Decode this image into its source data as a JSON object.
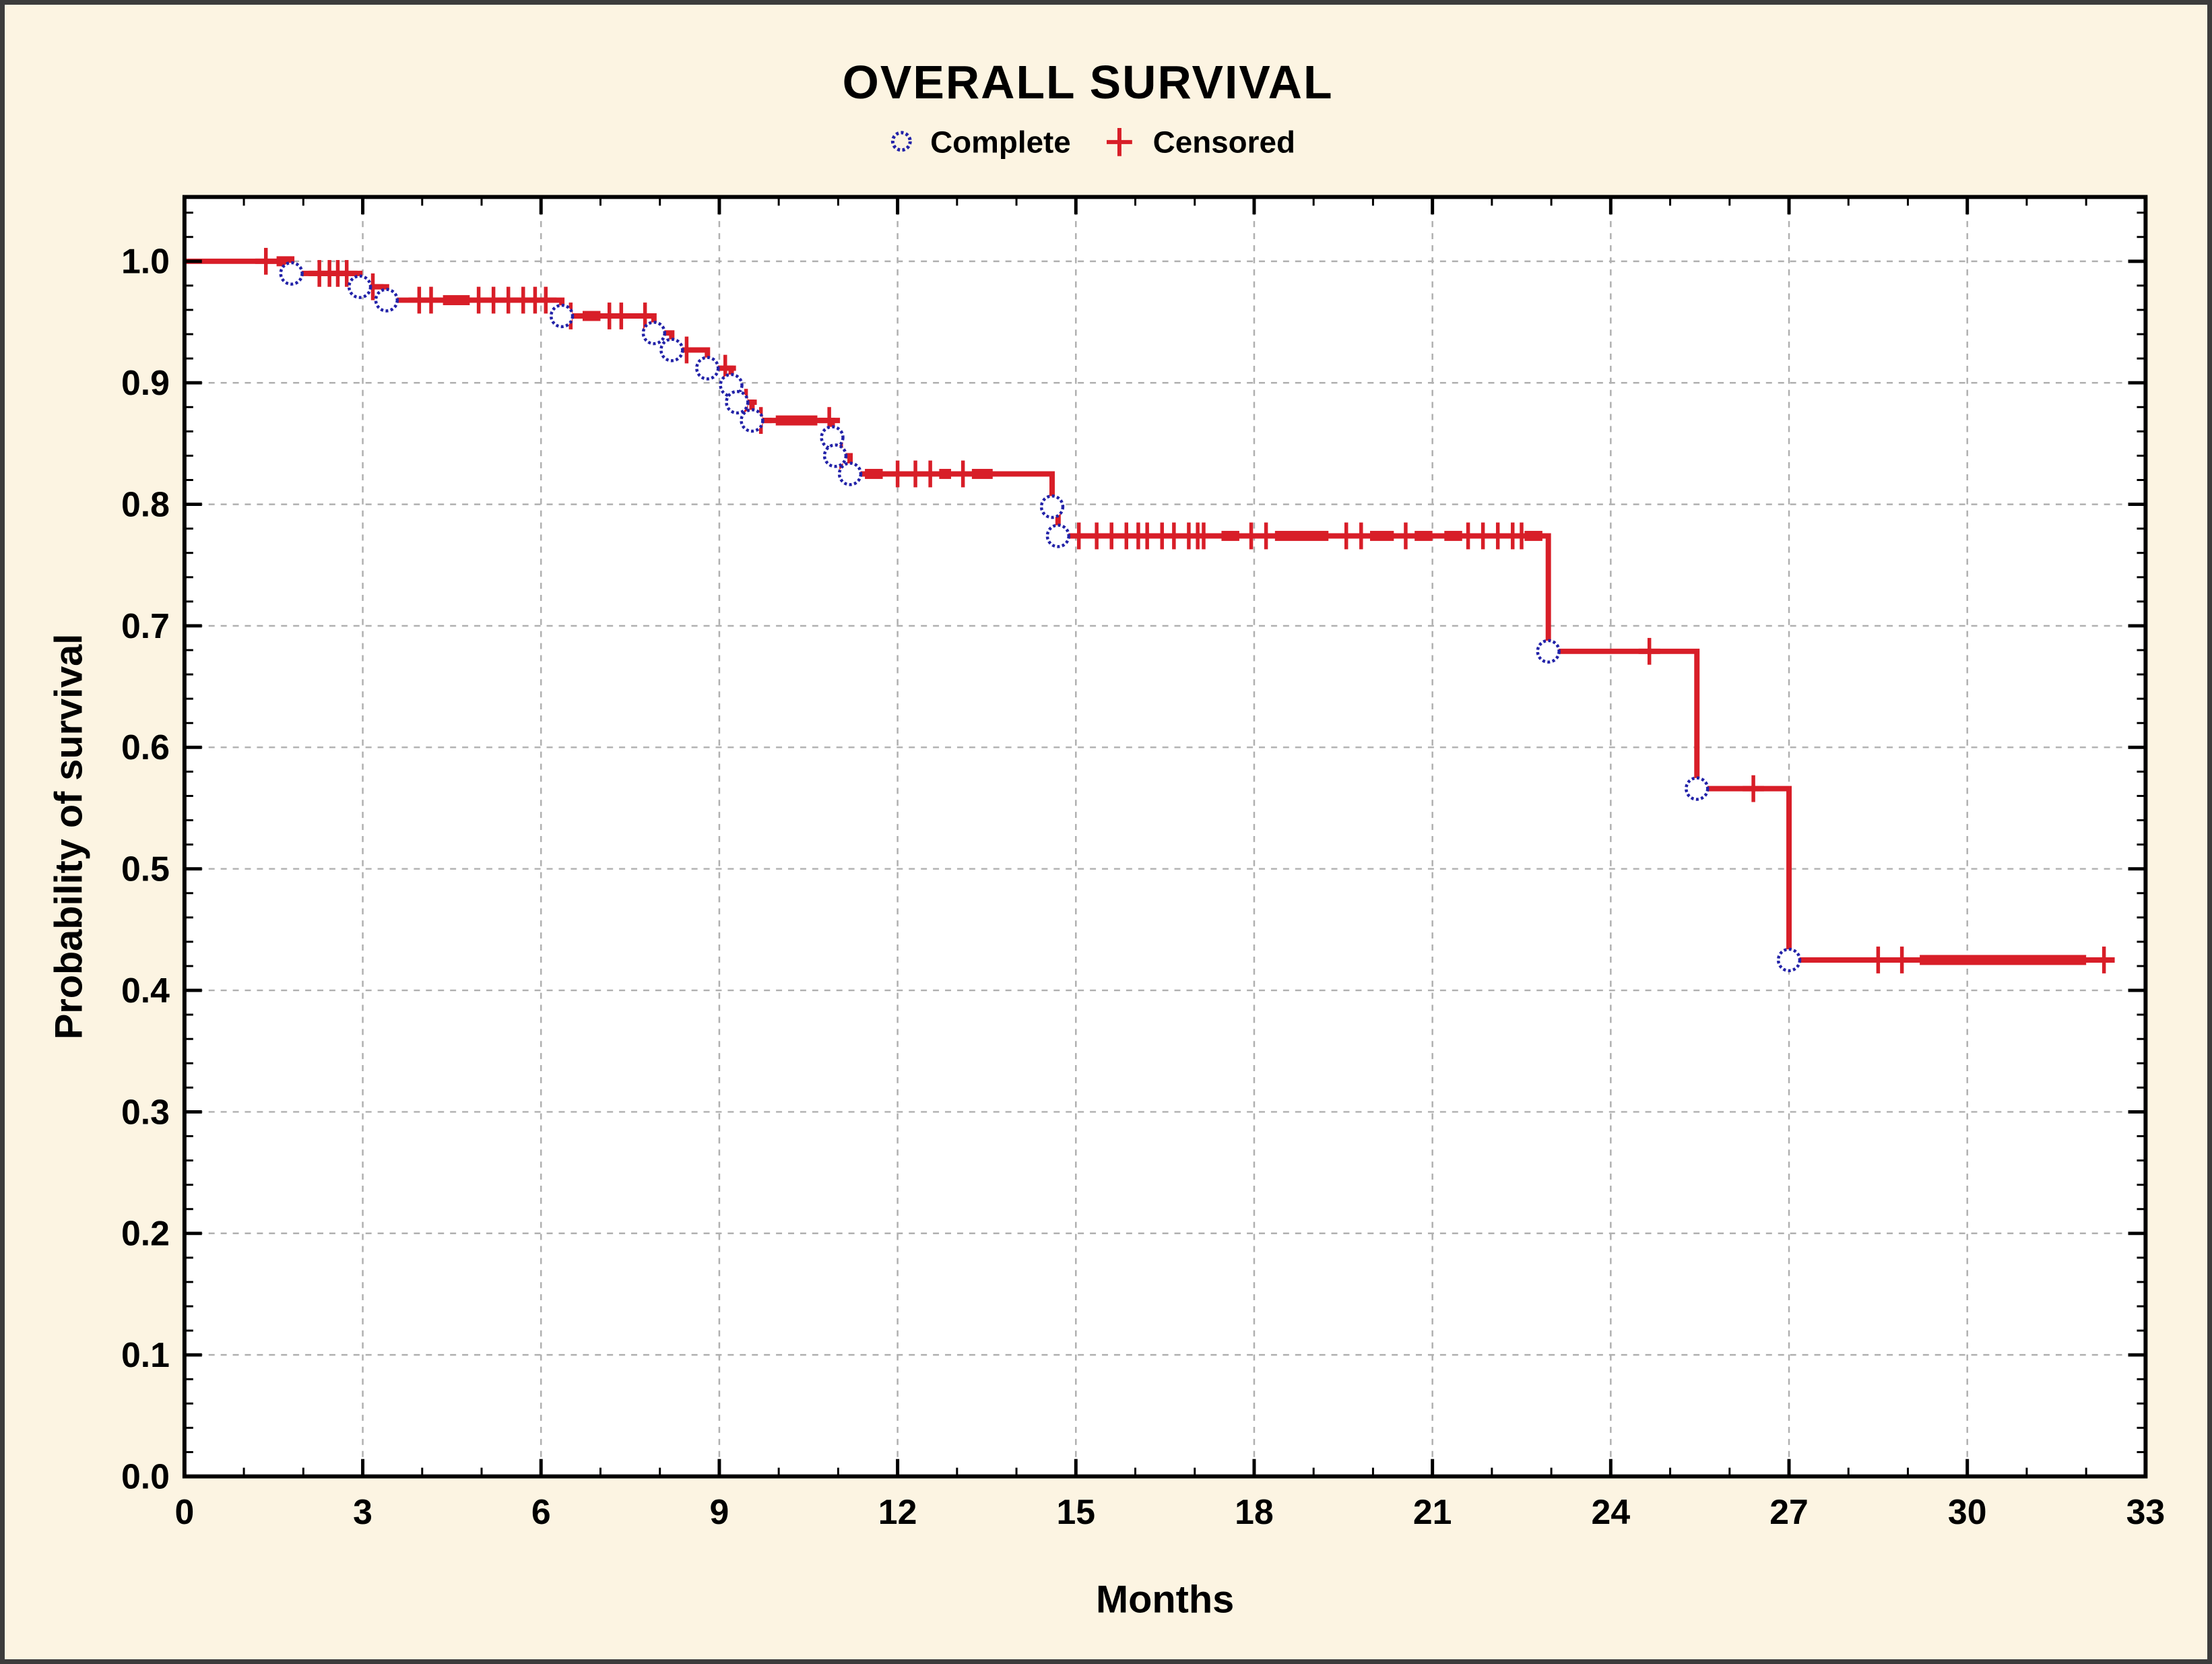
{
  "page": {
    "background_color": "#fcf4e2",
    "border_color": "#3c3c3c"
  },
  "chart_data": {
    "type": "line",
    "subtype": "kaplan-meier-step",
    "title": "OVERALL SURVIVAL",
    "legend": [
      {
        "label": "Complete",
        "marker": "circle-icon",
        "color": "#2222a8"
      },
      {
        "label": "Censored",
        "marker": "plus-icon",
        "color": "#d81e28"
      }
    ],
    "xlabel": "Months",
    "ylabel": "Probability of survival",
    "xlim": [
      0,
      33
    ],
    "ylim": [
      0.0,
      1.053
    ],
    "x_ticks": [
      0,
      3,
      6,
      9,
      12,
      15,
      18,
      21,
      24,
      27,
      30,
      33
    ],
    "x_tick_labels": [
      "0",
      "3",
      "6",
      "9",
      "12",
      "15",
      "18",
      "21",
      "24",
      "27",
      "30",
      "33"
    ],
    "x_minor_step": 1,
    "y_ticks": [
      0.0,
      0.1,
      0.2,
      0.3,
      0.4,
      0.5,
      0.6,
      0.7,
      0.8,
      0.9,
      1.0
    ],
    "y_tick_labels": [
      "0.0",
      "0.1",
      "0.2",
      "0.3",
      "0.4",
      "0.5",
      "0.6",
      "0.7",
      "0.8",
      "0.9",
      "1.0"
    ],
    "y_minor_step": 0.02,
    "grid": {
      "shown": true,
      "style": "dashed"
    },
    "colors": {
      "line": "#d81e28",
      "complete_marker": "#2222a8",
      "grid": "#b0b0b0",
      "axis": "#000000",
      "plot_bg": "#ffffff",
      "text": "#000000"
    },
    "curve_start": [
      0,
      1.0
    ],
    "curve_end_month": 32.4,
    "deaths": [
      [
        1.8,
        0.99
      ],
      [
        2.95,
        0.979
      ],
      [
        3.4,
        0.968
      ],
      [
        6.35,
        0.955
      ],
      [
        7.9,
        0.941
      ],
      [
        8.2,
        0.927
      ],
      [
        8.8,
        0.912
      ],
      [
        9.2,
        0.898
      ],
      [
        9.3,
        0.884
      ],
      [
        9.55,
        0.869
      ],
      [
        10.9,
        0.855
      ],
      [
        10.95,
        0.84
      ],
      [
        11.2,
        0.825
      ],
      [
        14.6,
        0.798
      ],
      [
        14.7,
        0.774
      ],
      [
        22.95,
        0.679
      ],
      [
        25.45,
        0.566
      ],
      [
        27.0,
        0.425
      ]
    ],
    "censored": [
      [
        1.37,
        1.0
      ],
      [
        2.27,
        0.99
      ],
      [
        2.44,
        0.99
      ],
      [
        2.58,
        0.99
      ],
      [
        2.73,
        0.99
      ],
      [
        3.17,
        0.979
      ],
      [
        3.95,
        0.968
      ],
      [
        4.15,
        0.968
      ],
      [
        4.95,
        0.968
      ],
      [
        5.2,
        0.968
      ],
      [
        5.45,
        0.968
      ],
      [
        5.7,
        0.968
      ],
      [
        5.9,
        0.968
      ],
      [
        6.08,
        0.968
      ],
      [
        6.5,
        0.955
      ],
      [
        7.15,
        0.955
      ],
      [
        7.35,
        0.955
      ],
      [
        7.75,
        0.955
      ],
      [
        8.45,
        0.927
      ],
      [
        9.1,
        0.912
      ],
      [
        9.45,
        0.884
      ],
      [
        9.7,
        0.869
      ],
      [
        10.85,
        0.869
      ],
      [
        11.05,
        0.84
      ],
      [
        12.0,
        0.825
      ],
      [
        12.3,
        0.825
      ],
      [
        12.55,
        0.825
      ],
      [
        13.1,
        0.825
      ],
      [
        15.05,
        0.774
      ],
      [
        15.35,
        0.774
      ],
      [
        15.6,
        0.774
      ],
      [
        15.85,
        0.774
      ],
      [
        16.05,
        0.774
      ],
      [
        16.2,
        0.774
      ],
      [
        16.45,
        0.774
      ],
      [
        16.65,
        0.774
      ],
      [
        16.9,
        0.774
      ],
      [
        17.05,
        0.774
      ],
      [
        17.15,
        0.774
      ],
      [
        17.95,
        0.774
      ],
      [
        18.2,
        0.774
      ],
      [
        19.55,
        0.774
      ],
      [
        19.8,
        0.774
      ],
      [
        20.55,
        0.774
      ],
      [
        21.6,
        0.774
      ],
      [
        21.85,
        0.774
      ],
      [
        22.1,
        0.774
      ],
      [
        22.35,
        0.774
      ],
      [
        22.5,
        0.774
      ],
      [
        24.65,
        0.679
      ],
      [
        26.4,
        0.566
      ],
      [
        28.5,
        0.425
      ],
      [
        28.9,
        0.425
      ],
      [
        32.3,
        0.425
      ]
    ],
    "censored_dense_clusters": [
      [
        1.55,
        1.85,
        1.0
      ],
      [
        4.35,
        4.8,
        0.968
      ],
      [
        6.7,
        7.0,
        0.955
      ],
      [
        9.95,
        10.65,
        0.869
      ],
      [
        11.45,
        11.75,
        0.825
      ],
      [
        12.7,
        12.9,
        0.825
      ],
      [
        13.25,
        13.6,
        0.825
      ],
      [
        17.45,
        17.75,
        0.774
      ],
      [
        18.35,
        19.25,
        0.774
      ],
      [
        19.95,
        20.35,
        0.774
      ],
      [
        20.7,
        21.0,
        0.774
      ],
      [
        21.2,
        21.5,
        0.774
      ],
      [
        22.55,
        22.85,
        0.774
      ],
      [
        29.2,
        32.0,
        0.425
      ]
    ]
  }
}
